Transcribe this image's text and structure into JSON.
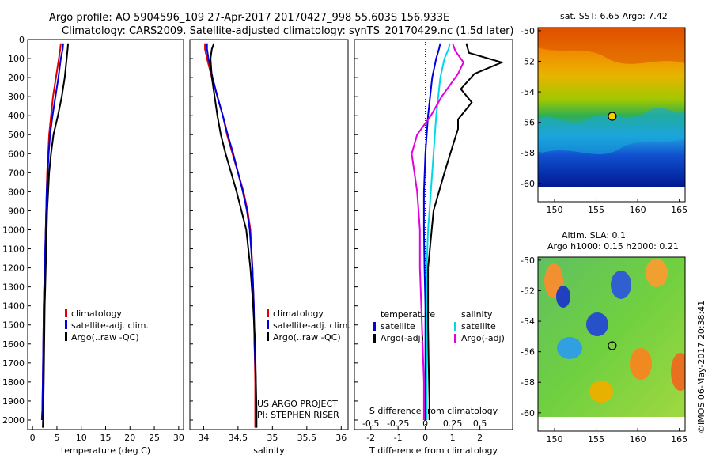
{
  "header": {
    "line1": "Argo profile: AO 5904596_109 27-Apr-2017 20170427_998 55.603S 156.933E",
    "line2": "Climatology: CARS2009. Satellite-adjusted climatology: synTS_20170429.nc (1.5d later)"
  },
  "colors": {
    "climatology": "#e00000",
    "satellite": "#0000e0",
    "argo": "#000000",
    "satellite_s": "#00d8e8",
    "argo_s": "#e000e0"
  },
  "chart_data": [
    {
      "type": "line",
      "id": "temperature",
      "xlabel": "temperature (deg C)",
      "ylabel": "",
      "xlim": [
        -1,
        31
      ],
      "ylim": [
        2050,
        0
      ],
      "xticks": [
        "0",
        "5",
        "10",
        "15",
        "20",
        "25",
        "30"
      ],
      "yticks": [
        "0",
        "100",
        "200",
        "300",
        "400",
        "500",
        "600",
        "700",
        "800",
        "900",
        "1000",
        "1100",
        "1200",
        "1300",
        "1400",
        "1500",
        "1600",
        "1700",
        "1800",
        "1900",
        "2000"
      ],
      "legend": [
        "climatology",
        "satellite-adj. clim.",
        "Argo(..raw -QC)"
      ],
      "series": [
        {
          "name": "climatology",
          "x": [
            5.8,
            5.7,
            5.4,
            4.8,
            4.2,
            3.8,
            3.4,
            3.2,
            3.0,
            2.9,
            2.8,
            2.7,
            2.6,
            2.5,
            2.4,
            2.3,
            2.2,
            2.1,
            2.0,
            1.9
          ],
          "y": [
            20,
            50,
            100,
            200,
            300,
            400,
            500,
            600,
            700,
            800,
            900,
            1000,
            1100,
            1200,
            1300,
            1400,
            1600,
            1800,
            1950,
            2000
          ]
        },
        {
          "name": "satellite-adj. clim.",
          "x": [
            6.3,
            6.2,
            5.8,
            5.3,
            4.7,
            4.1,
            3.6,
            3.3,
            3.1,
            2.9,
            2.8,
            2.7,
            2.6,
            2.5,
            2.4,
            2.3,
            2.2,
            2.1,
            2.0,
            1.9
          ],
          "y": [
            20,
            50,
            100,
            200,
            300,
            400,
            500,
            600,
            700,
            800,
            900,
            1000,
            1100,
            1200,
            1300,
            1400,
            1600,
            1800,
            1950,
            2000
          ]
        },
        {
          "name": "Argo(..raw -QC)",
          "x": [
            7.3,
            7.2,
            7.0,
            6.6,
            6.0,
            5.2,
            4.3,
            3.8,
            3.4,
            3.2,
            3.0,
            2.9,
            2.8,
            2.7,
            2.6,
            2.5,
            2.4,
            2.3,
            2.2,
            2.1
          ],
          "y": [
            20,
            50,
            100,
            200,
            300,
            400,
            500,
            600,
            700,
            800,
            900,
            1000,
            1100,
            1200,
            1300,
            1400,
            1600,
            1800,
            1950,
            2040
          ]
        }
      ]
    },
    {
      "type": "line",
      "id": "salinity",
      "xlabel": "salinity",
      "xlim": [
        33.8,
        36.1
      ],
      "ylim": [
        2050,
        0
      ],
      "xticks": [
        "34",
        "34.5",
        "35",
        "35.5",
        "36"
      ],
      "legend": [
        "climatology",
        "satellite-adj. clim.",
        "Argo(..raw -QC)"
      ],
      "annotation": [
        "US ARGO PROJECT",
        "PI: STEPHEN RISER"
      ],
      "series": [
        {
          "name": "climatology",
          "x": [
            34.02,
            34.02,
            34.05,
            34.12,
            34.2,
            34.28,
            34.34,
            34.42,
            34.5,
            34.58,
            34.64,
            34.68,
            34.71,
            34.73,
            34.74,
            34.75,
            34.75,
            34.75,
            34.75
          ],
          "y": [
            20,
            50,
            100,
            200,
            300,
            400,
            500,
            600,
            700,
            800,
            900,
            1000,
            1200,
            1400,
            1600,
            1800,
            1900,
            2000,
            2040
          ]
        },
        {
          "name": "satellite-adj. clim.",
          "x": [
            34.05,
            34.05,
            34.07,
            34.13,
            34.2,
            34.28,
            34.35,
            34.43,
            34.5,
            34.57,
            34.63,
            34.67,
            34.71,
            34.73,
            34.74,
            34.76,
            34.76,
            34.76
          ],
          "y": [
            20,
            50,
            100,
            200,
            300,
            400,
            500,
            600,
            700,
            800,
            900,
            1000,
            1200,
            1400,
            1600,
            1800,
            1950,
            2040
          ]
        },
        {
          "name": "Argo(..raw -QC)",
          "x": [
            34.15,
            34.12,
            34.1,
            34.12,
            34.16,
            34.2,
            34.25,
            34.32,
            34.4,
            34.48,
            34.55,
            34.62,
            34.68,
            34.72,
            34.75,
            34.76,
            34.77,
            34.77
          ],
          "y": [
            20,
            50,
            100,
            200,
            300,
            400,
            500,
            600,
            700,
            800,
            900,
            1000,
            1200,
            1400,
            1600,
            1800,
            1950,
            2040
          ]
        }
      ]
    },
    {
      "type": "line",
      "id": "difference",
      "xlabel": "T difference from climatology",
      "xlabel2": "S difference from climatology",
      "xlim": [
        -2.6,
        3.2
      ],
      "ylim": [
        2050,
        0
      ],
      "xticks": [
        "-2",
        "-1",
        "0",
        "1",
        "2"
      ],
      "xticks2": [
        "-0.5",
        "-0.25",
        "0",
        "0.25",
        "0.5"
      ],
      "legend_t": {
        "title": "temperature",
        "items": [
          "satellite",
          "Argo(-adj)"
        ]
      },
      "legend_s": {
        "title": "salinity",
        "items": [
          "satellite",
          "Argo(-adj)"
        ]
      },
      "series": [
        {
          "name": "satellite T",
          "x": [
            0.55,
            0.5,
            0.4,
            0.25,
            0.1,
            0.0,
            -0.05,
            -0.05,
            -0.03,
            0.0,
            0.0,
            0.0,
            0.0,
            0.0,
            0.0,
            0.0
          ],
          "y": [
            20,
            50,
            100,
            200,
            400,
            600,
            800,
            1000,
            1200,
            1400,
            1500,
            1600,
            1700,
            1800,
            1900,
            2000
          ]
        },
        {
          "name": "satellite S",
          "x": [
            0.9,
            0.85,
            0.7,
            0.55,
            0.4,
            0.3,
            0.2,
            0.1,
            0.05,
            0.05,
            0.05,
            0.05,
            0.05,
            0.05
          ],
          "y": [
            20,
            50,
            100,
            200,
            400,
            600,
            800,
            1000,
            1200,
            1400,
            1600,
            1800,
            1900,
            2000
          ]
        },
        {
          "name": "Argo(-adj) T",
          "x": [
            1.5,
            1.6,
            2.8,
            1.8,
            1.3,
            1.7,
            1.2,
            1.2,
            1.0,
            0.7,
            0.3,
            0.1,
            0.1,
            0.12,
            0.15,
            0.15
          ],
          "y": [
            20,
            70,
            120,
            180,
            260,
            330,
            420,
            470,
            560,
            700,
            900,
            1200,
            1500,
            1700,
            1900,
            2000
          ]
        },
        {
          "name": "Argo(-adj) S",
          "x": [
            1.0,
            1.1,
            1.4,
            1.2,
            0.9,
            0.6,
            0.2,
            -0.3,
            -0.5,
            -0.3,
            -0.2,
            -0.2,
            -0.15,
            -0.1,
            -0.05,
            -0.05
          ],
          "y": [
            20,
            60,
            120,
            180,
            240,
            300,
            400,
            500,
            600,
            800,
            1000,
            1200,
            1400,
            1600,
            1800,
            2000
          ]
        }
      ]
    },
    {
      "type": "heatmap",
      "id": "sst-map",
      "title": "sat. SST: 6.65 Argo: 7.42",
      "xlim": [
        148,
        165.7
      ],
      "ylim": [
        -61.2,
        -49.8
      ],
      "xticks": [
        "150",
        "155",
        "160",
        "165"
      ],
      "yticks": [
        "-50",
        "-52",
        "-54",
        "-56",
        "-58",
        "-60"
      ],
      "argo_position": {
        "lon": 156.933,
        "lat": -55.603
      }
    },
    {
      "type": "heatmap",
      "id": "sla-map",
      "title": "Altim. SLA: 0.1",
      "subtitle": "Argo h1000: 0.15 h2000: 0.21",
      "xlim": [
        148,
        165.7
      ],
      "ylim": [
        -61.2,
        -49.8
      ],
      "xticks": [
        "150",
        "155",
        "160",
        "165"
      ],
      "yticks": [
        "-50",
        "-52",
        "-54",
        "-56",
        "-58",
        "-60"
      ],
      "argo_position": {
        "lon": 156.933,
        "lat": -55.603
      }
    }
  ],
  "footer": {
    "stamp": "©IMOS 06-May-2017 20:38:41"
  }
}
